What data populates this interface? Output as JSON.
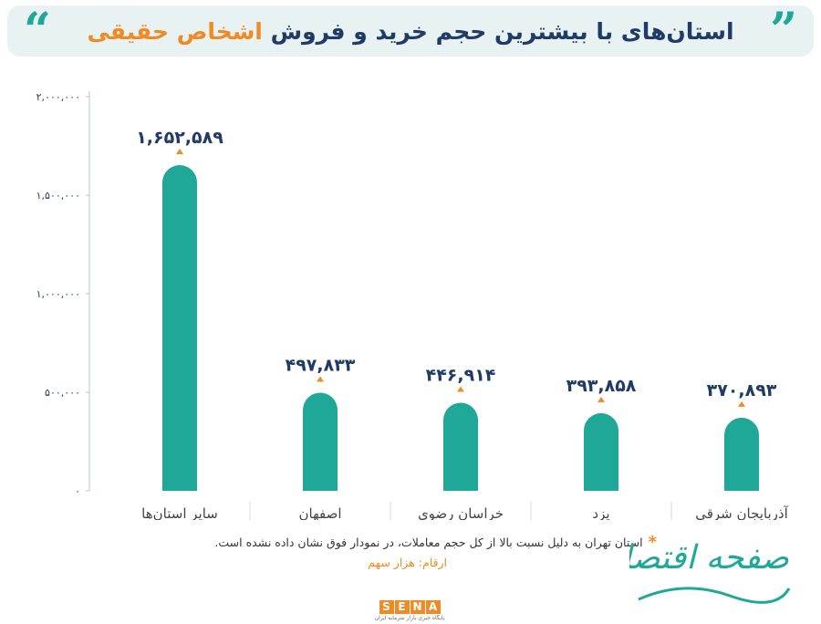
{
  "header": {
    "title_main": "استان‌های با بیشترین حجم خرید و فروش ",
    "title_accent": "اشخاص حقیقی"
  },
  "chart_data": {
    "type": "bar",
    "categories": [
      "سایر استان‌ها",
      "اصفهان",
      "خراسان رضوی",
      "یزد",
      "آذربایجان شرقی"
    ],
    "values": [
      1652589,
      497833,
      446914,
      393858,
      370893
    ],
    "value_labels": [
      "۱,۶۵۲,۵۸۹",
      "۴۹۷,۸۳۳",
      "۴۴۶,۹۱۴",
      "۳۹۳,۸۵۸",
      "۳۷۰,۸۹۳"
    ],
    "yticks": [
      0,
      500000,
      1000000,
      1500000,
      2000000
    ],
    "ytick_labels": [
      "۰",
      "۵۰۰,۰۰۰",
      "۱,۰۰۰,۰۰۰",
      "۱,۵۰۰,۰۰۰",
      "۲,۰۰۰,۰۰۰"
    ],
    "ylim": [
      0,
      2000000
    ],
    "grid": false,
    "bar_color": "#1fa898",
    "marker_color": "#f08a24"
  },
  "footnote": {
    "text": "استان تهران به دلیل نسبت بالا از کل حجم معاملات، در نمودار فوق نشان داده نشده است.",
    "unit": "ارقام: هزار سهم"
  },
  "brand": {
    "text": "صفحه اقتصاد",
    "logo_letters": [
      "S",
      "E",
      "N",
      "A"
    ],
    "logo_subtitle": "پایگاه خبری بازار سرمایه ایران"
  },
  "colors": {
    "accent": "#f08a24",
    "navy": "#1f3b66",
    "teal": "#1fa898"
  }
}
